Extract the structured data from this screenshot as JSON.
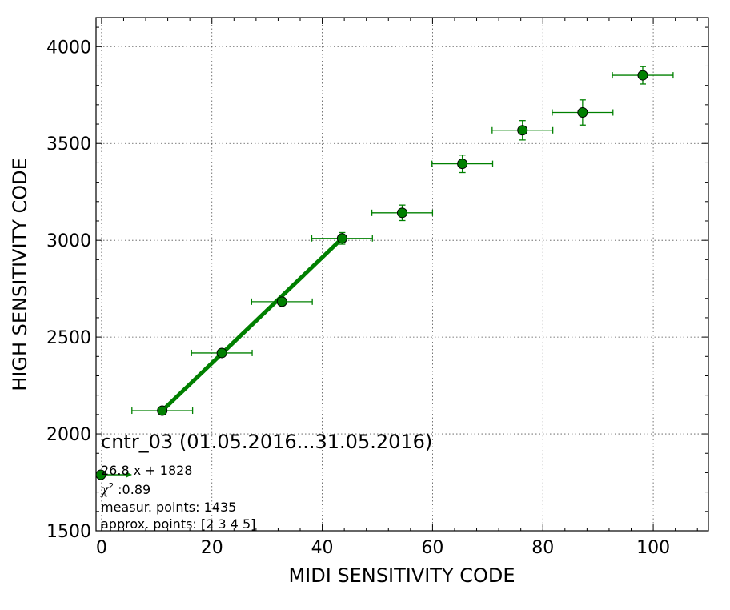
{
  "chart_data": {
    "type": "scatter",
    "xlabel": "MIDI SENSITIVITY CODE",
    "ylabel": "HIGH SENSITIVITY CODE",
    "xlim": [
      -1,
      110
    ],
    "ylim": [
      1500,
      4150
    ],
    "xticks": [
      0,
      20,
      40,
      60,
      80,
      100
    ],
    "yticks": [
      1500,
      2000,
      2500,
      3000,
      3500,
      4000
    ],
    "grid": true,
    "colors": {
      "points": "#008000",
      "fit": "#008000",
      "errorbars": "#008000",
      "edge": "#000000"
    },
    "points": [
      {
        "x": 11.0,
        "y": 2120,
        "xerr": 5.5,
        "yerr": 12
      },
      {
        "x": 21.8,
        "y": 2418,
        "xerr": 5.5,
        "yerr": 15
      },
      {
        "x": 32.7,
        "y": 2683,
        "xerr": 5.5,
        "yerr": 20
      },
      {
        "x": 43.6,
        "y": 3010,
        "xerr": 5.5,
        "yerr": 30
      },
      {
        "x": 54.5,
        "y": 3142,
        "xerr": 5.5,
        "yerr": 40
      },
      {
        "x": 65.4,
        "y": 3395,
        "xerr": 5.5,
        "yerr": 45
      },
      {
        "x": 76.3,
        "y": 3568,
        "xerr": 5.5,
        "yerr": 50
      },
      {
        "x": 87.2,
        "y": 3660,
        "xerr": 5.5,
        "yerr": 65
      },
      {
        "x": 98.1,
        "y": 3852,
        "xerr": 5.5,
        "yerr": 45
      }
    ],
    "fit_line": {
      "x": [
        11.0,
        43.6
      ],
      "y": [
        2120,
        3010
      ]
    },
    "annotations": {
      "title": "cntr_03 (01.05.2016...31.05.2016)",
      "equation": "26.8 x + 1828",
      "chi_label": "χ",
      "chi_exp": "2",
      "chi_value": " :0.89",
      "measured": "measur. points: 1435",
      "approx": "approx. points: [2 3 4 5]"
    }
  }
}
